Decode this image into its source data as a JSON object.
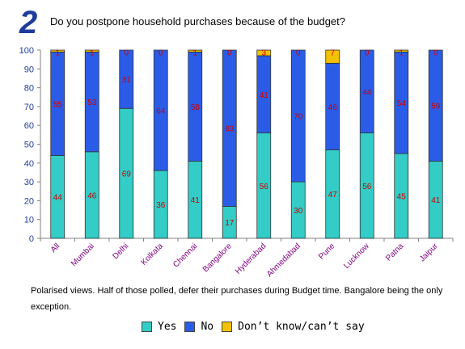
{
  "header": {
    "number": "2",
    "title": "Do you postpone household purchases because of the budget?"
  },
  "caption": "Polarised views. Half of those polled, defer their purchases during Budget time. Bangalore being the only exception.",
  "colors": {
    "yes": "#33ccc6",
    "no": "#2b5ce8",
    "dk": "#f2c200",
    "label": "#cc0000",
    "city": "#800080"
  },
  "chart_data": {
    "type": "bar",
    "stacked": true,
    "categories": [
      "All",
      "Mumbai",
      "Delhi",
      "Kolkata",
      "Chennai",
      "Bangalore",
      "Hyderabad",
      "Ahmedabad",
      "Pune",
      "Lucknow",
      "Patna",
      "Jaipur"
    ],
    "series": [
      {
        "name": "Yes",
        "values": [
          44,
          46,
          69,
          36,
          41,
          17,
          56,
          30,
          47,
          56,
          45,
          41
        ]
      },
      {
        "name": "No",
        "values": [
          55,
          53,
          31,
          64,
          58,
          83,
          41,
          70,
          46,
          44,
          54,
          59
        ]
      },
      {
        "name": "Don’t know/can’t say",
        "values": [
          1,
          1,
          0,
          0,
          1,
          0,
          3,
          0,
          7,
          0,
          1,
          0
        ]
      }
    ],
    "yticks": [
      0,
      10,
      20,
      30,
      40,
      50,
      60,
      70,
      80,
      90,
      100
    ],
    "ylim": [
      0,
      100
    ],
    "legend_position": "bottom"
  }
}
